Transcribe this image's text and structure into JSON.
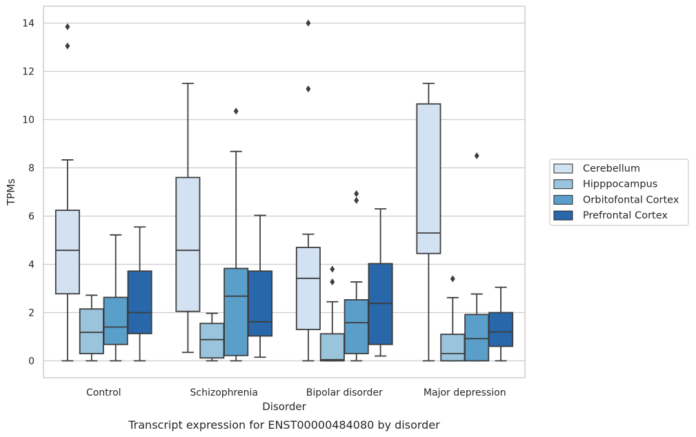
{
  "chart_data": {
    "type": "boxplot",
    "title": "",
    "caption": "Transcript expression for ENST00000484080 by disorder",
    "xlabel": "Disorder",
    "ylabel": "TPMs",
    "ylim": [
      -0.7,
      14.7
    ],
    "yticks": [
      0,
      2,
      4,
      6,
      8,
      10,
      12,
      14
    ],
    "grid": "horizontal",
    "legend_position": "right",
    "categories": [
      "Control",
      "Schizophrenia",
      "Bipolar disorder",
      "Major depression"
    ],
    "series": [
      {
        "name": "Cerebellum",
        "color": "#d3e2f2",
        "boxes": [
          {
            "q1": 2.78,
            "median": 4.58,
            "q3": 6.24,
            "whisker_low": 0.0,
            "whisker_high": 8.33,
            "outliers": [
              13.05,
              13.85
            ]
          },
          {
            "q1": 2.05,
            "median": 4.58,
            "q3": 7.6,
            "whisker_low": 0.35,
            "whisker_high": 11.5,
            "outliers": []
          },
          {
            "q1": 1.3,
            "median": 3.42,
            "q3": 4.7,
            "whisker_low": 0.0,
            "whisker_high": 5.25,
            "outliers": [
              11.27,
              14.0
            ]
          },
          {
            "q1": 4.45,
            "median": 5.3,
            "q3": 10.65,
            "whisker_low": 0.0,
            "whisker_high": 11.5,
            "outliers": []
          }
        ]
      },
      {
        "name": "Hipppocampus",
        "color": "#9ac3dc",
        "boxes": [
          {
            "q1": 0.3,
            "median": 1.18,
            "q3": 2.15,
            "whisker_low": 0.0,
            "whisker_high": 2.72,
            "outliers": []
          },
          {
            "q1": 0.12,
            "median": 0.88,
            "q3": 1.55,
            "whisker_low": 0.0,
            "whisker_high": 1.97,
            "outliers": []
          },
          {
            "q1": 0.0,
            "median": 0.05,
            "q3": 1.12,
            "whisker_low": 0.0,
            "whisker_high": 2.45,
            "outliers": [
              3.27,
              3.8
            ]
          },
          {
            "q1": 0.0,
            "median": 0.3,
            "q3": 1.1,
            "whisker_low": 0.0,
            "whisker_high": 2.62,
            "outliers": [
              3.4
            ]
          }
        ]
      },
      {
        "name": "Orbitofontal Cortex",
        "color": "#5a9fca",
        "boxes": [
          {
            "q1": 0.68,
            "median": 1.4,
            "q3": 2.63,
            "whisker_low": 0.0,
            "whisker_high": 5.22,
            "outliers": []
          },
          {
            "q1": 0.22,
            "median": 2.68,
            "q3": 3.83,
            "whisker_low": 0.0,
            "whisker_high": 8.68,
            "outliers": [
              10.35
            ]
          },
          {
            "q1": 0.3,
            "median": 1.58,
            "q3": 2.53,
            "whisker_low": 0.0,
            "whisker_high": 3.27,
            "outliers": [
              6.65,
              6.93
            ]
          },
          {
            "q1": 0.0,
            "median": 0.92,
            "q3": 1.92,
            "whisker_low": 0.0,
            "whisker_high": 2.77,
            "outliers": [
              8.5
            ]
          }
        ]
      },
      {
        "name": "Prefrontal Cortex",
        "color": "#2867a9",
        "boxes": [
          {
            "q1": 1.13,
            "median": 2.0,
            "q3": 3.72,
            "whisker_low": 0.0,
            "whisker_high": 5.55,
            "outliers": []
          },
          {
            "q1": 1.03,
            "median": 1.62,
            "q3": 3.72,
            "whisker_low": 0.15,
            "whisker_high": 6.03,
            "outliers": []
          },
          {
            "q1": 0.68,
            "median": 2.38,
            "q3": 4.03,
            "whisker_low": 0.2,
            "whisker_high": 6.3,
            "outliers": []
          },
          {
            "q1": 0.6,
            "median": 1.2,
            "q3": 2.0,
            "whisker_low": 0.0,
            "whisker_high": 3.05,
            "outliers": []
          }
        ]
      }
    ]
  }
}
